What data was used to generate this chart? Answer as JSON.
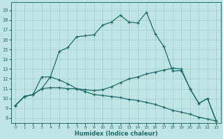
{
  "xlabel": "Humidex (Indice chaleur)",
  "xlim": [
    -0.5,
    23.5
  ],
  "ylim": [
    7.5,
    19.8
  ],
  "yticks": [
    8,
    9,
    10,
    11,
    12,
    13,
    14,
    15,
    16,
    17,
    18,
    19
  ],
  "xticks": [
    0,
    1,
    2,
    3,
    4,
    5,
    6,
    7,
    8,
    9,
    10,
    11,
    12,
    13,
    14,
    15,
    16,
    17,
    18,
    19,
    20,
    21,
    22,
    23
  ],
  "background_color": "#c0e4e4",
  "grid_color": "#9ecece",
  "line_color": "#1e6b6b",
  "line1_x": [
    0,
    1,
    2,
    3,
    4,
    5,
    6,
    7,
    8,
    9,
    10,
    11,
    12,
    13,
    14,
    15,
    16,
    17,
    18,
    19,
    20,
    21,
    22,
    23
  ],
  "line1_y": [
    9.3,
    10.2,
    10.4,
    11.0,
    12.2,
    14.8,
    15.2,
    16.3,
    16.4,
    16.5,
    17.5,
    17.8,
    18.5,
    17.8,
    17.7,
    18.8,
    16.6,
    15.3,
    12.8,
    12.85,
    11.0,
    9.5,
    10.0,
    7.7
  ],
  "line2_x": [
    0,
    1,
    2,
    3,
    4,
    5,
    6,
    7,
    8,
    9,
    10,
    11,
    12,
    13,
    14,
    15,
    16,
    17,
    18,
    19,
    20,
    21,
    22,
    23
  ],
  "line2_y": [
    9.3,
    10.2,
    10.4,
    11.0,
    11.1,
    11.1,
    11.0,
    11.0,
    10.9,
    10.8,
    10.9,
    11.2,
    11.6,
    12.0,
    12.2,
    12.5,
    12.7,
    12.9,
    13.1,
    13.0,
    11.0,
    9.5,
    10.0,
    7.7
  ],
  "line3_x": [
    0,
    1,
    2,
    3,
    4,
    5,
    6,
    7,
    8,
    9,
    10,
    11,
    12,
    13,
    14,
    15,
    16,
    17,
    18,
    19,
    20,
    21,
    22,
    23
  ],
  "line3_y": [
    9.3,
    10.2,
    10.4,
    12.2,
    12.2,
    11.9,
    11.5,
    11.0,
    10.7,
    10.4,
    10.3,
    10.2,
    10.1,
    9.9,
    9.8,
    9.6,
    9.4,
    9.1,
    8.8,
    8.6,
    8.4,
    8.1,
    7.9,
    7.7
  ]
}
